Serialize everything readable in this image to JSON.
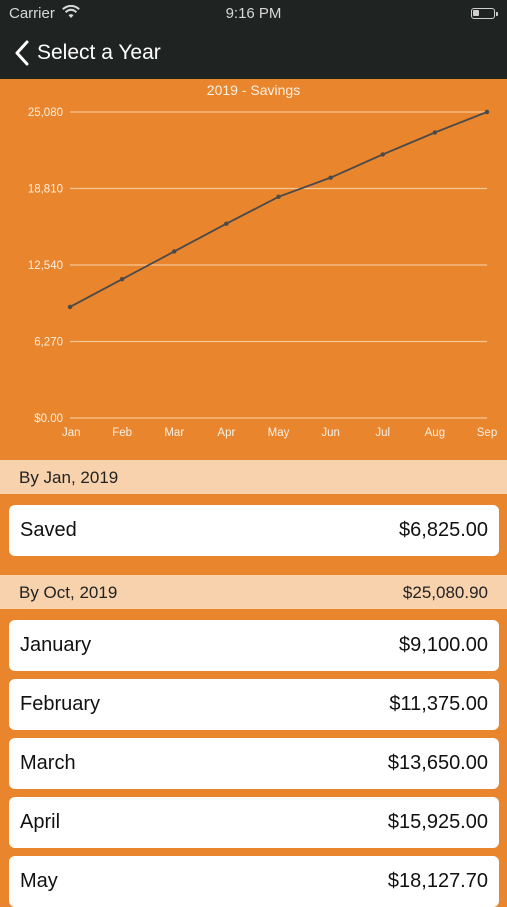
{
  "status_bar": {
    "carrier": "Carrier",
    "time": "9:16 PM"
  },
  "nav": {
    "back_label": "Select a Year"
  },
  "chart_title": "2019 - Savings",
  "chart_data": {
    "type": "line",
    "title": "2019 - Savings",
    "categories": [
      "Jan",
      "Feb",
      "Mar",
      "Apr",
      "May",
      "Jun",
      "Jul",
      "Aug",
      "Sep"
    ],
    "series": [
      {
        "values": [
          9100,
          11375,
          13650,
          15925,
          18127.7,
          19700,
          21600,
          23400,
          25080.9
        ]
      }
    ],
    "y_ticks": [
      "$0.00",
      "6,270",
      "12,540",
      "18,810",
      "25,080"
    ],
    "ylim": [
      0,
      25080
    ],
    "grid": true,
    "colors": {
      "line": "#4a4a4a",
      "grid": "#f6c896",
      "labels": "#fdf1e4"
    }
  },
  "summary": {
    "header": "By Jan, 2019",
    "row": {
      "name": "Saved",
      "value": "$6,825.00"
    }
  },
  "months": {
    "header_left": "By Oct, 2019",
    "header_right": "$25,080.90",
    "rows": [
      {
        "name": "January",
        "value": "$9,100.00"
      },
      {
        "name": "February",
        "value": "$11,375.00"
      },
      {
        "name": "March",
        "value": "$13,650.00"
      },
      {
        "name": "April",
        "value": "$15,925.00"
      },
      {
        "name": "May",
        "value": "$18,127.70"
      }
    ]
  },
  "colors": {
    "accent": "#e8852d",
    "nav": "#1f2422",
    "section": "#f8d2ad"
  }
}
